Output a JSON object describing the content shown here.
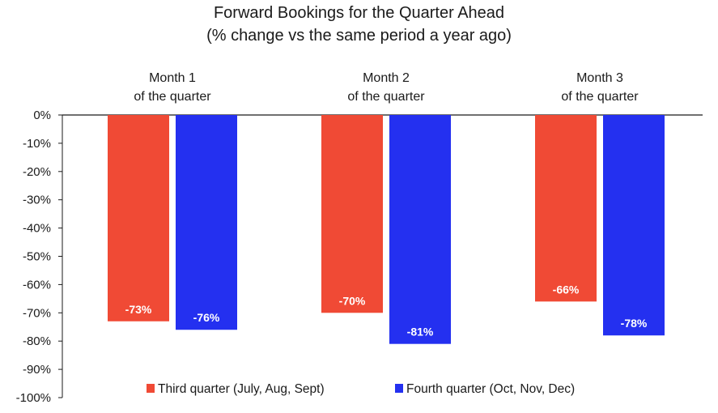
{
  "chart_data": {
    "type": "bar",
    "title": "Forward Bookings for the Quarter Ahead",
    "subtitle": "(% change vs the same period a year ago)",
    "categories": [
      "Month 1\nof the quarter",
      "Month 2\nof the quarter",
      "Month 3\nof the quarter"
    ],
    "series": [
      {
        "name": "Third quarter (July, Aug, Sept)",
        "values": [
          -73,
          -70,
          -66
        ],
        "color": "#f04a35"
      },
      {
        "name": "Fourth quarter (Oct, Nov, Dec)",
        "values": [
          -76,
          -81,
          -78
        ],
        "color": "#2430f0"
      }
    ],
    "ylim": [
      -100,
      0
    ],
    "yticks": [
      "0%",
      "-10%",
      "-20%",
      "-30%",
      "-40%",
      "-50%",
      "-60%",
      "-70%",
      "-80%",
      "-90%",
      "-100%"
    ],
    "data_labels": [
      [
        "-73%",
        "-70%",
        "-66%"
      ],
      [
        "-76%",
        "-81%",
        "-78%"
      ]
    ],
    "xlabel": "",
    "ylabel": "",
    "grid": false,
    "legend_position": "bottom"
  }
}
